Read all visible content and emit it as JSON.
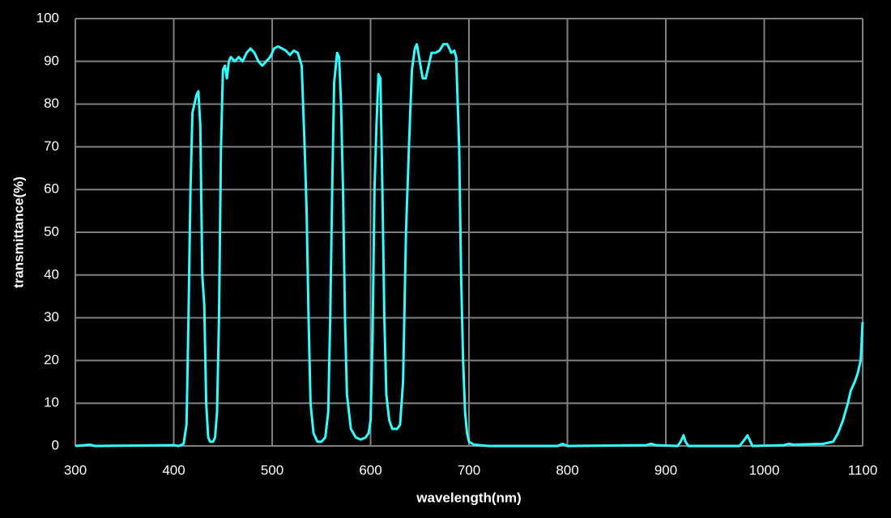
{
  "chart_data": {
    "type": "line",
    "xlabel": "wavelength(nm)",
    "ylabel": "transmittance(%)",
    "xlim": [
      300,
      1100
    ],
    "ylim": [
      0,
      100
    ],
    "xticks": [
      300,
      400,
      500,
      600,
      700,
      800,
      900,
      1000,
      1100
    ],
    "yticks": [
      0,
      10,
      20,
      30,
      40,
      50,
      60,
      70,
      80,
      90,
      100
    ],
    "grid": true,
    "series": [
      {
        "color": "#33ffff",
        "x": [
          300,
          315,
          320,
          400,
          405,
          410,
          413,
          415,
          417,
          419,
          421,
          423,
          425,
          427,
          429,
          431,
          433,
          435,
          437,
          440,
          442,
          444,
          446,
          448,
          450,
          452,
          454,
          456,
          458,
          462,
          466,
          470,
          474,
          478,
          482,
          486,
          490,
          494,
          498,
          502,
          506,
          510,
          514,
          518,
          522,
          526,
          530,
          533,
          535,
          537,
          539,
          542,
          546,
          550,
          554,
          557,
          559,
          561,
          563,
          566,
          568,
          570,
          572,
          574,
          576,
          580,
          585,
          590,
          595,
          598,
          600,
          602,
          604,
          606,
          608,
          610,
          612,
          614,
          616,
          619,
          622,
          627,
          630,
          633,
          636,
          639,
          642,
          645,
          647,
          650,
          653,
          656,
          659,
          662,
          666,
          670,
          674,
          678,
          682,
          685,
          687,
          690,
          692,
          694,
          696,
          698,
          700,
          705,
          720,
          790,
          795,
          800,
          880,
          885,
          890,
          912,
          915,
          918,
          920,
          923,
          975,
          980,
          983,
          985,
          988,
          1020,
          1025,
          1030,
          1060,
          1070,
          1075,
          1080,
          1085,
          1088,
          1092,
          1095,
          1098,
          1100
        ],
        "values": [
          0,
          0.3,
          0,
          0.2,
          0,
          0.5,
          5,
          30,
          60,
          78,
          80,
          82,
          83,
          75,
          40,
          33,
          10,
          2,
          1,
          1,
          2,
          8,
          30,
          70,
          88,
          89,
          86,
          90,
          91,
          90,
          91,
          90,
          92,
          93,
          92,
          90,
          89,
          90,
          91,
          93,
          93.5,
          93,
          92.5,
          91.5,
          92.5,
          92,
          89,
          70,
          55,
          30,
          10,
          3,
          1,
          1,
          2,
          8,
          30,
          60,
          85,
          92,
          91,
          80,
          60,
          30,
          12,
          4,
          2,
          1.5,
          2,
          3,
          6,
          25,
          60,
          75,
          87,
          86,
          60,
          30,
          12,
          6,
          4,
          4,
          5,
          15,
          50,
          70,
          88,
          93,
          94,
          90,
          86,
          86,
          89,
          92,
          92,
          92.5,
          94,
          94,
          92,
          92.5,
          91,
          70,
          40,
          20,
          8,
          3,
          1,
          0.3,
          0,
          0,
          0.5,
          0,
          0.2,
          0.5,
          0.2,
          0,
          1,
          2.5,
          1,
          0,
          0,
          1.5,
          2.5,
          1.5,
          0,
          0.2,
          0.5,
          0.3,
          0.5,
          1,
          3,
          6,
          10,
          13,
          15,
          17,
          20,
          29
        ]
      }
    ]
  }
}
